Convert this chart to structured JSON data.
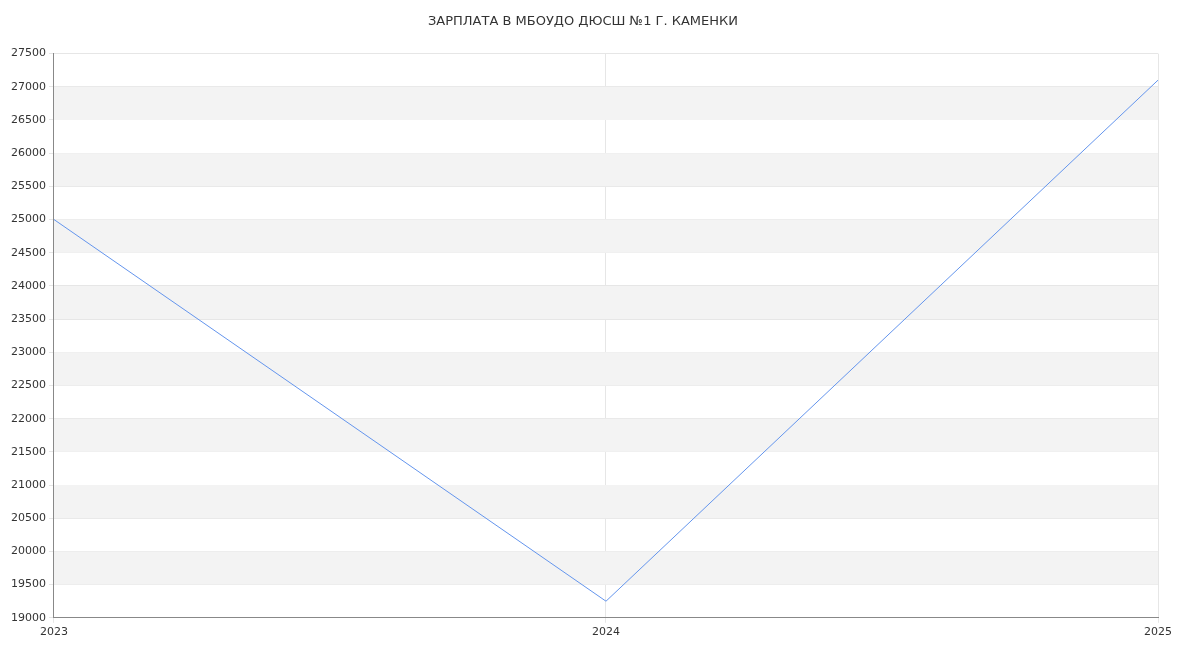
{
  "chart_data": {
    "type": "line",
    "title": "ЗАРПЛАТА В МБОУДО ДЮСШ №1 Г. КАМЕНКИ",
    "x": [
      2023,
      2024,
      2025
    ],
    "series": [
      {
        "color": "#6495ed",
        "values": [
          25000,
          19250,
          27100
        ]
      }
    ],
    "xlim": [
      2023,
      2025
    ],
    "xticks": [
      2023,
      2024,
      2025
    ],
    "ylim": [
      19000,
      27500
    ],
    "yticks": [
      19000,
      19500,
      20000,
      20500,
      21000,
      21500,
      22000,
      22500,
      23000,
      23500,
      24000,
      24500,
      25000,
      25500,
      26000,
      26500,
      27000,
      27500
    ],
    "grid": true,
    "legend": false,
    "marker": "none",
    "line_style": "solid"
  }
}
